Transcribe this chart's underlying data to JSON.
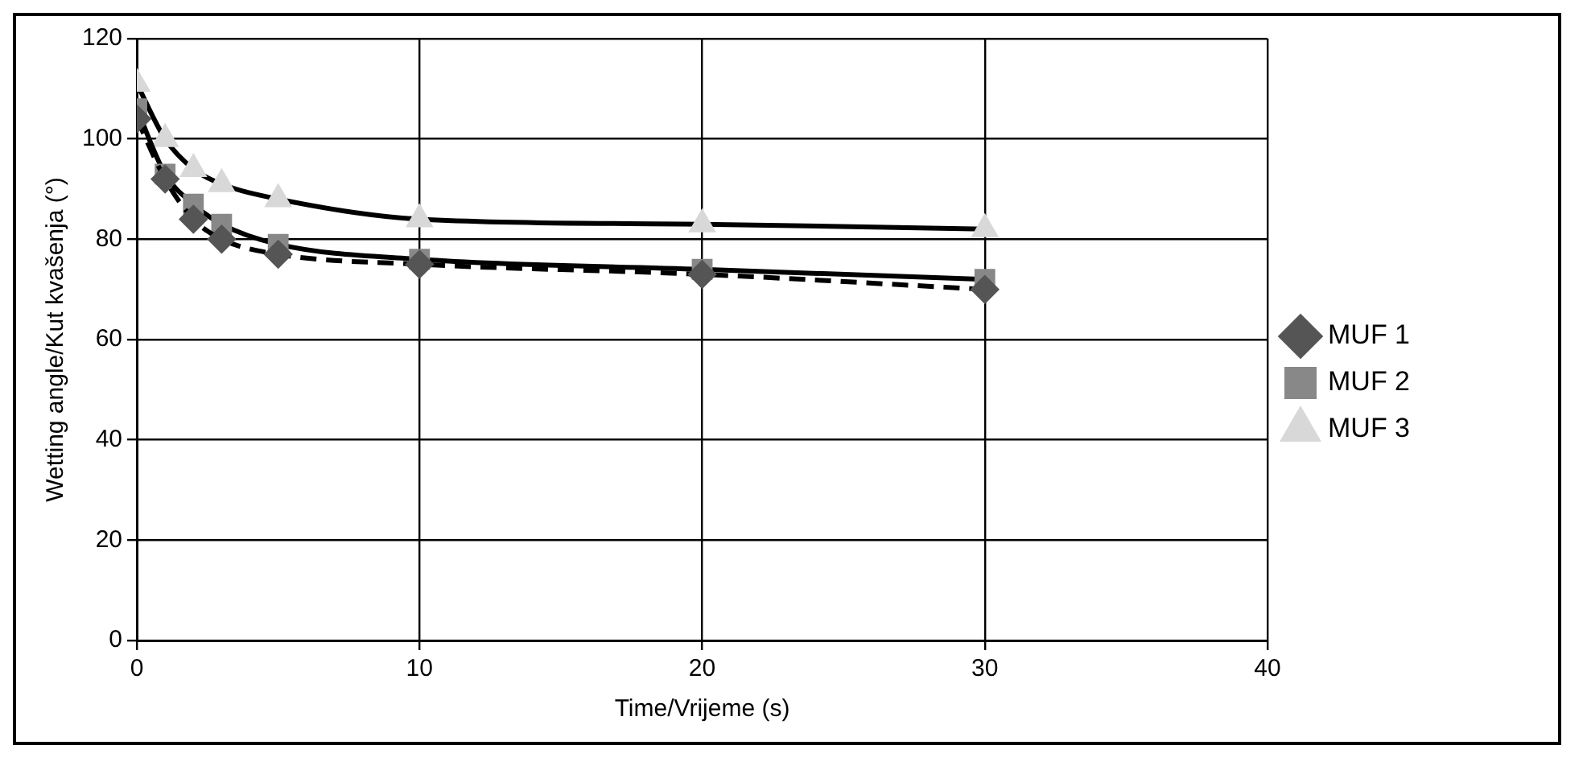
{
  "chart_data": {
    "type": "line",
    "xlabel": "Time/Vrijeme (s)",
    "ylabel": "Wetting angle/Kut kvašenja (°)",
    "xlim": [
      0,
      40
    ],
    "xticks": [
      0,
      10,
      20,
      30,
      40
    ],
    "ylim": [
      0,
      120
    ],
    "yticks": [
      0,
      20,
      40,
      60,
      80,
      100,
      120
    ],
    "grid": true,
    "legend": "right",
    "series": [
      {
        "name": "MUF 1",
        "color": "#555555",
        "marker": "diamond",
        "line_style": "dashed",
        "x": [
          0,
          1,
          2,
          3,
          5,
          10,
          20,
          30
        ],
        "values": [
          104,
          92,
          84,
          80,
          77,
          75,
          73,
          70
        ]
      },
      {
        "name": "MUF 2",
        "color": "#888888",
        "marker": "square",
        "line_style": "solid",
        "x": [
          0,
          1,
          2,
          3,
          5,
          10,
          20,
          30
        ],
        "values": [
          106,
          93,
          87,
          83,
          79,
          76,
          74,
          72
        ]
      },
      {
        "name": "MUF 3",
        "color": "#d8d8d8",
        "marker": "triangle",
        "line_style": "solid",
        "x": [
          0,
          1,
          2,
          3,
          5,
          10,
          20,
          30
        ],
        "values": [
          111,
          100,
          94,
          91,
          88,
          84,
          83,
          82
        ]
      }
    ]
  }
}
